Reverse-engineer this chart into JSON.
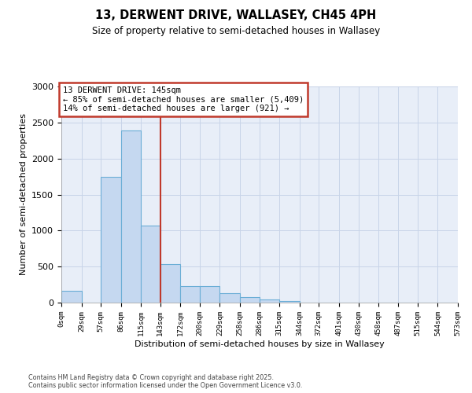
{
  "title1": "13, DERWENT DRIVE, WALLASEY, CH45 4PH",
  "title2": "Size of property relative to semi-detached houses in Wallasey",
  "xlabel": "Distribution of semi-detached houses by size in Wallasey",
  "ylabel": "Number of semi-detached properties",
  "annotation_title": "13 DERWENT DRIVE: 145sqm",
  "annotation_line1": "← 85% of semi-detached houses are smaller (5,409)",
  "annotation_line2": "14% of semi-detached houses are larger (921) →",
  "property_size": 145,
  "bin_edges": [
    0,
    29,
    57,
    86,
    115,
    143,
    172,
    200,
    229,
    258,
    286,
    315,
    344,
    372,
    401,
    430,
    458,
    487,
    515,
    544,
    573
  ],
  "bin_labels": [
    "0sqm",
    "29sqm",
    "57sqm",
    "86sqm",
    "115sqm",
    "143sqm",
    "172sqm",
    "200sqm",
    "229sqm",
    "258sqm",
    "286sqm",
    "315sqm",
    "344sqm",
    "372sqm",
    "401sqm",
    "430sqm",
    "458sqm",
    "487sqm",
    "515sqm",
    "544sqm",
    "573sqm"
  ],
  "bar_heights": [
    165,
    0,
    1750,
    2390,
    1070,
    540,
    230,
    225,
    135,
    75,
    40,
    25,
    0,
    0,
    0,
    0,
    0,
    0,
    0,
    0
  ],
  "bar_color": "#C5D8F0",
  "bar_edge_color": "#6BAED6",
  "vline_color": "#C0392B",
  "vline_x": 143,
  "annotation_box_color": "#C0392B",
  "annotation_fill": "#FFFFFF",
  "grid_color": "#C8D4E8",
  "background_color": "#E8EEF8",
  "ylim": [
    0,
    3000
  ],
  "yticks": [
    0,
    500,
    1000,
    1500,
    2000,
    2500,
    3000
  ],
  "footer1": "Contains HM Land Registry data © Crown copyright and database right 2025.",
  "footer2": "Contains public sector information licensed under the Open Government Licence v3.0."
}
